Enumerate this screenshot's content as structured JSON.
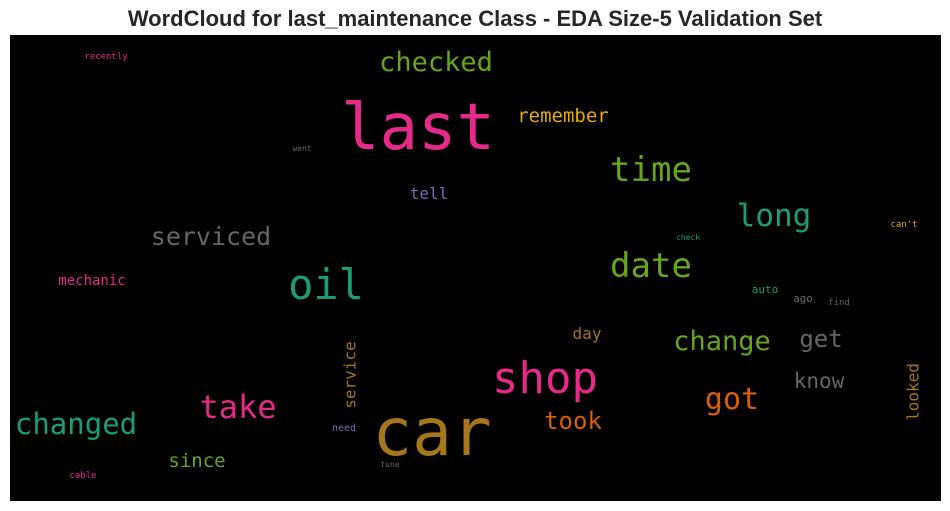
{
  "chart_data": {
    "type": "wordcloud",
    "title": "WordCloud for last_maintenance Class - EDA Size-5 Validation Set",
    "background": "#000000",
    "words": [
      {
        "text": "last",
        "color": "#e7298a",
        "vertical": false
      },
      {
        "text": "car",
        "color": "#a6761d",
        "vertical": false
      },
      {
        "text": "shop",
        "color": "#e7298a",
        "vertical": false
      },
      {
        "text": "oil",
        "color": "#1b9e77",
        "vertical": false
      },
      {
        "text": "date",
        "color": "#66a61e",
        "vertical": false
      },
      {
        "text": "time",
        "color": "#66a61e",
        "vertical": false
      },
      {
        "text": "checked",
        "color": "#66a61e",
        "vertical": false
      },
      {
        "text": "long",
        "color": "#1b9e77",
        "vertical": false
      },
      {
        "text": "changed",
        "color": "#1b9e77",
        "vertical": false
      },
      {
        "text": "take",
        "color": "#e7298a",
        "vertical": false
      },
      {
        "text": "serviced",
        "color": "#666666",
        "vertical": false
      },
      {
        "text": "change",
        "color": "#66a61e",
        "vertical": false
      },
      {
        "text": "got",
        "color": "#d95f02",
        "vertical": false
      },
      {
        "text": "get",
        "color": "#666666",
        "vertical": false
      },
      {
        "text": "took",
        "color": "#d95f02",
        "vertical": false
      },
      {
        "text": "know",
        "color": "#666666",
        "vertical": false
      },
      {
        "text": "remember",
        "color": "#e6ab02",
        "vertical": false
      },
      {
        "text": "since",
        "color": "#66a61e",
        "vertical": false
      },
      {
        "text": "service",
        "color": "#a6761d",
        "vertical": true
      },
      {
        "text": "looked",
        "color": "#a6761d",
        "vertical": true
      },
      {
        "text": "day",
        "color": "#a6761d",
        "vertical": false
      },
      {
        "text": "tell",
        "color": "#7570b3",
        "vertical": false
      },
      {
        "text": "mechanic",
        "color": "#e7298a",
        "vertical": false
      },
      {
        "text": "auto",
        "color": "#1b9e77",
        "vertical": false
      },
      {
        "text": "ago",
        "color": "#666666",
        "vertical": false
      },
      {
        "text": "find",
        "color": "#666666",
        "vertical": false
      },
      {
        "text": "need",
        "color": "#7570b3",
        "vertical": false
      },
      {
        "text": "check",
        "color": "#1b9e77",
        "vertical": false
      },
      {
        "text": "can't",
        "color": "#e6ab02",
        "vertical": false
      },
      {
        "text": "recently",
        "color": "#e7298a",
        "vertical": false
      },
      {
        "text": "went",
        "color": "#666666",
        "vertical": false
      },
      {
        "text": "tune",
        "color": "#666666",
        "vertical": false
      },
      {
        "text": "cable",
        "color": "#e7298a",
        "vertical": false
      }
    ]
  }
}
